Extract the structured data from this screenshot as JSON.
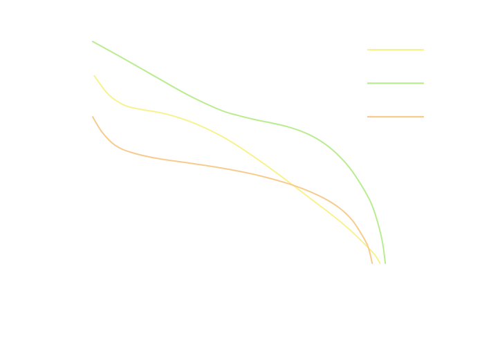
{
  "chart_data": {
    "type": "line",
    "title": "",
    "xlabel": "",
    "ylabel": "",
    "grid": false,
    "legend_position": "top-right",
    "xlim": [
      0,
      1
    ],
    "ylim": [
      0,
      1
    ],
    "series": [
      {
        "color": "#f8f28e",
        "points": [
          [
            0.005,
            0.845
          ],
          [
            0.05,
            0.76
          ],
          [
            0.1,
            0.712
          ],
          [
            0.15,
            0.694
          ],
          [
            0.2,
            0.682
          ],
          [
            0.25,
            0.665
          ],
          [
            0.3,
            0.641
          ],
          [
            0.35,
            0.611
          ],
          [
            0.4,
            0.575
          ],
          [
            0.45,
            0.532
          ],
          [
            0.5,
            0.484
          ],
          [
            0.55,
            0.433
          ],
          [
            0.6,
            0.38
          ],
          [
            0.65,
            0.325
          ],
          [
            0.7,
            0.27
          ],
          [
            0.75,
            0.215
          ],
          [
            0.8,
            0.155
          ],
          [
            0.84,
            0.1
          ],
          [
            0.88,
            0.04
          ],
          [
            0.897,
            0.0
          ]
        ]
      },
      {
        "color": "#b9ec8f",
        "points": [
          [
            0.0,
            1.0
          ],
          [
            0.1,
            0.92
          ],
          [
            0.2,
            0.838
          ],
          [
            0.3,
            0.757
          ],
          [
            0.4,
            0.69
          ],
          [
            0.45,
            0.668
          ],
          [
            0.5,
            0.65
          ],
          [
            0.55,
            0.635
          ],
          [
            0.6,
            0.619
          ],
          [
            0.65,
            0.596
          ],
          [
            0.7,
            0.562
          ],
          [
            0.75,
            0.51
          ],
          [
            0.8,
            0.435
          ],
          [
            0.84,
            0.35
          ],
          [
            0.87,
            0.27
          ],
          [
            0.89,
            0.185
          ],
          [
            0.905,
            0.095
          ],
          [
            0.914,
            0.0
          ]
        ]
      },
      {
        "color": "#f7cb8e",
        "points": [
          [
            0.0,
            0.66
          ],
          [
            0.03,
            0.59
          ],
          [
            0.07,
            0.532
          ],
          [
            0.12,
            0.5
          ],
          [
            0.2,
            0.473
          ],
          [
            0.3,
            0.452
          ],
          [
            0.4,
            0.43
          ],
          [
            0.5,
            0.402
          ],
          [
            0.6,
            0.364
          ],
          [
            0.66,
            0.334
          ],
          [
            0.72,
            0.295
          ],
          [
            0.77,
            0.25
          ],
          [
            0.81,
            0.195
          ],
          [
            0.84,
            0.13
          ],
          [
            0.86,
            0.075
          ],
          [
            0.873,
            0.0
          ]
        ]
      }
    ]
  }
}
